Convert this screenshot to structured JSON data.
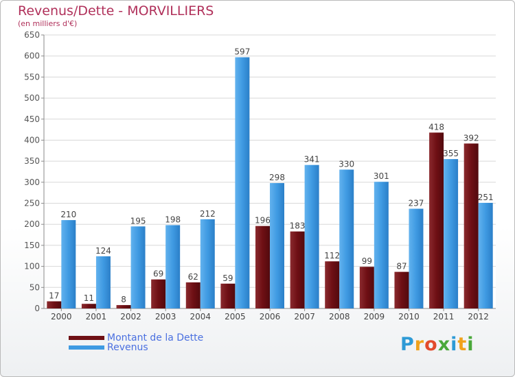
{
  "chart_data": {
    "type": "bar",
    "title": "Revenus/Dette - MORVILLIERS",
    "subtitle": "(en milliers d'€)",
    "xlabel": "",
    "ylabel": "",
    "categories": [
      "2000",
      "2001",
      "2002",
      "2003",
      "2004",
      "2005",
      "2006",
      "2007",
      "2008",
      "2009",
      "2010",
      "2011",
      "2012"
    ],
    "yticks": [
      0,
      50,
      100,
      150,
      200,
      250,
      300,
      350,
      400,
      450,
      500,
      550,
      600,
      650
    ],
    "ylim": [
      0,
      650
    ],
    "grid": true,
    "legend_position": "bottom-left",
    "series": [
      {
        "name": "Montant de la Dette",
        "color": "#6e0f14",
        "values": [
          17,
          11,
          8,
          69,
          62,
          59,
          196,
          183,
          112,
          99,
          87,
          418,
          392
        ]
      },
      {
        "name": "Revenus",
        "color": "#3f9ae2",
        "values": [
          210,
          124,
          195,
          198,
          212,
          597,
          298,
          341,
          330,
          301,
          237,
          355,
          251
        ]
      }
    ]
  },
  "logo": {
    "text": "Proxiti",
    "letters": [
      {
        "ch": "P",
        "color": "#2e9ad6"
      },
      {
        "ch": "r",
        "color": "#f0a21c"
      },
      {
        "ch": "o",
        "color": "#e24b2c"
      },
      {
        "ch": "x",
        "color": "#4aa83a"
      },
      {
        "ch": "i",
        "color": "#2e9ad6"
      },
      {
        "ch": "t",
        "color": "#f0a21c"
      },
      {
        "ch": "i",
        "color": "#4aa83a"
      }
    ]
  }
}
